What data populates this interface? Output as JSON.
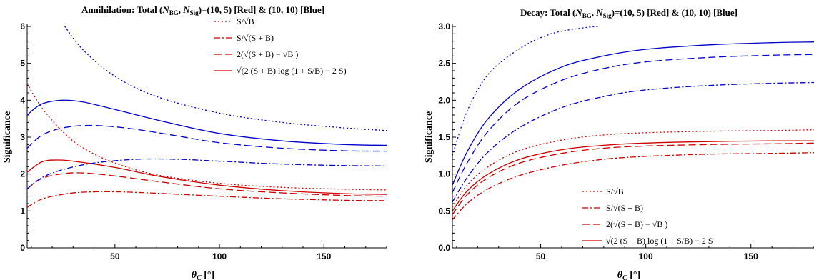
{
  "chart_data": [
    {
      "type": "line",
      "title_prefix": "Annihilation: Total (",
      "title_suffix": ")=(10, 5) [Red] & (10, 10) [Blue]",
      "xlabel": "θ",
      "xlabel_sub": "C",
      "xlabel_unit": " [°]",
      "ylabel": "Significance",
      "xlim": [
        8,
        180
      ],
      "ylim": [
        0,
        6
      ],
      "xticks": [
        50,
        100,
        150
      ],
      "yticks": [
        0,
        1,
        2,
        3,
        4,
        5,
        6
      ],
      "legend": "top-right",
      "legend_entries": [
        "S/√B",
        "S/√(S + B)",
        "2(√(S + B) − √B )",
        "√(2 (S + B) log (1 + S/B) − 2 S)"
      ],
      "series": [
        {
          "color": "#cc0000",
          "style": "dotted",
          "points": [
            [
              8,
              4.45
            ],
            [
              15,
              3.8
            ],
            [
              25,
              3.15
            ],
            [
              35,
              2.7
            ],
            [
              50,
              2.3
            ],
            [
              70,
              1.98
            ],
            [
              100,
              1.75
            ],
            [
              130,
              1.64
            ],
            [
              160,
              1.59
            ],
            [
              180,
              1.57
            ]
          ]
        },
        {
          "color": "#cc0000",
          "style": "dashdot",
          "points": [
            [
              8,
              1.1
            ],
            [
              15,
              1.32
            ],
            [
              25,
              1.45
            ],
            [
              35,
              1.51
            ],
            [
              50,
              1.52
            ],
            [
              70,
              1.48
            ],
            [
              100,
              1.4
            ],
            [
              130,
              1.33
            ],
            [
              160,
              1.29
            ],
            [
              180,
              1.28
            ]
          ]
        },
        {
          "color": "#cc0000",
          "style": "dashed",
          "points": [
            [
              8,
              1.6
            ],
            [
              15,
              1.88
            ],
            [
              25,
              2.01
            ],
            [
              35,
              2.03
            ],
            [
              50,
              1.95
            ],
            [
              70,
              1.8
            ],
            [
              100,
              1.6
            ],
            [
              130,
              1.49
            ],
            [
              160,
              1.42
            ],
            [
              180,
              1.4
            ]
          ]
        },
        {
          "color": "#cc0000",
          "style": "solid",
          "points": [
            [
              8,
              2.05
            ],
            [
              15,
              2.33
            ],
            [
              22,
              2.38
            ],
            [
              30,
              2.35
            ],
            [
              50,
              2.18
            ],
            [
              70,
              1.95
            ],
            [
              100,
              1.7
            ],
            [
              130,
              1.55
            ],
            [
              160,
              1.47
            ],
            [
              180,
              1.45
            ]
          ]
        },
        {
          "color": "#0000cc",
          "style": "dotted",
          "points": [
            [
              26,
              6.0
            ],
            [
              35,
              5.35
            ],
            [
              50,
              4.65
            ],
            [
              70,
              4.1
            ],
            [
              100,
              3.65
            ],
            [
              130,
              3.4
            ],
            [
              160,
              3.25
            ],
            [
              180,
              3.18
            ]
          ]
        },
        {
          "color": "#0000cc",
          "style": "dashdot",
          "points": [
            [
              8,
              1.6
            ],
            [
              15,
              1.9
            ],
            [
              25,
              2.12
            ],
            [
              40,
              2.3
            ],
            [
              60,
              2.4
            ],
            [
              80,
              2.4
            ],
            [
              100,
              2.35
            ],
            [
              130,
              2.27
            ],
            [
              160,
              2.23
            ],
            [
              180,
              2.22
            ]
          ]
        },
        {
          "color": "#0000cc",
          "style": "dashed",
          "points": [
            [
              8,
              2.7
            ],
            [
              15,
              3.05
            ],
            [
              25,
              3.25
            ],
            [
              38,
              3.32
            ],
            [
              55,
              3.25
            ],
            [
              75,
              3.08
            ],
            [
              100,
              2.85
            ],
            [
              130,
              2.7
            ],
            [
              160,
              2.63
            ],
            [
              180,
              2.62
            ]
          ]
        },
        {
          "color": "#0000cc",
          "style": "solid",
          "points": [
            [
              8,
              3.6
            ],
            [
              15,
              3.9
            ],
            [
              25,
              4.0
            ],
            [
              35,
              3.95
            ],
            [
              50,
              3.75
            ],
            [
              75,
              3.4
            ],
            [
              100,
              3.1
            ],
            [
              130,
              2.9
            ],
            [
              160,
              2.8
            ],
            [
              180,
              2.78
            ]
          ]
        }
      ]
    },
    {
      "type": "line",
      "title_prefix": "Decay: Total (",
      "title_suffix": ")=(10, 5) [Red] & (10, 10) [Blue]",
      "xlabel": "θ",
      "xlabel_sub": "C",
      "xlabel_unit": " [°]",
      "ylabel": "Significance",
      "xlim": [
        8,
        180
      ],
      "ylim": [
        0,
        3.0
      ],
      "xticks": [
        50,
        100,
        150
      ],
      "yticks": [
        0.0,
        0.5,
        1.0,
        1.5,
        2.0,
        2.5,
        3.0
      ],
      "legend": "bottom-right",
      "legend_entries": [
        "S/√B",
        "S/√(S + B)",
        "2(√(S + B) − √B )",
        "√(2 (S + B) log (1 + S/B) − 2 S"
      ],
      "series": [
        {
          "color": "#0000cc",
          "style": "dotted",
          "points": [
            [
              8,
              1.25
            ],
            [
              15,
              1.85
            ],
            [
              25,
              2.35
            ],
            [
              40,
              2.7
            ],
            [
              55,
              2.9
            ],
            [
              70,
              2.98
            ],
            [
              78,
              3.0
            ]
          ]
        },
        {
          "color": "#0000cc",
          "style": "solid",
          "points": [
            [
              8,
              0.85
            ],
            [
              15,
              1.3
            ],
            [
              25,
              1.75
            ],
            [
              40,
              2.15
            ],
            [
              60,
              2.45
            ],
            [
              80,
              2.6
            ],
            [
              100,
              2.69
            ],
            [
              130,
              2.75
            ],
            [
              160,
              2.78
            ],
            [
              180,
              2.79
            ]
          ]
        },
        {
          "color": "#0000cc",
          "style": "dashed",
          "points": [
            [
              8,
              0.75
            ],
            [
              15,
              1.15
            ],
            [
              25,
              1.58
            ],
            [
              40,
              1.98
            ],
            [
              60,
              2.27
            ],
            [
              80,
              2.43
            ],
            [
              100,
              2.52
            ],
            [
              130,
              2.58
            ],
            [
              160,
              2.61
            ],
            [
              180,
              2.62
            ]
          ]
        },
        {
          "color": "#0000cc",
          "style": "dashdot",
          "points": [
            [
              8,
              0.62
            ],
            [
              15,
              0.95
            ],
            [
              25,
              1.3
            ],
            [
              40,
              1.63
            ],
            [
              60,
              1.9
            ],
            [
              80,
              2.05
            ],
            [
              100,
              2.14
            ],
            [
              130,
              2.2
            ],
            [
              160,
              2.23
            ],
            [
              180,
              2.24
            ]
          ]
        },
        {
          "color": "#cc0000",
          "style": "dotted",
          "points": [
            [
              8,
              0.55
            ],
            [
              15,
              0.85
            ],
            [
              25,
              1.1
            ],
            [
              40,
              1.32
            ],
            [
              60,
              1.46
            ],
            [
              80,
              1.53
            ],
            [
              100,
              1.56
            ],
            [
              130,
              1.58
            ],
            [
              160,
              1.59
            ],
            [
              180,
              1.6
            ]
          ]
        },
        {
          "color": "#cc0000",
          "style": "solid",
          "points": [
            [
              8,
              0.5
            ],
            [
              15,
              0.77
            ],
            [
              25,
              1.0
            ],
            [
              40,
              1.2
            ],
            [
              60,
              1.33
            ],
            [
              80,
              1.39
            ],
            [
              100,
              1.42
            ],
            [
              130,
              1.44
            ],
            [
              160,
              1.45
            ],
            [
              180,
              1.45
            ]
          ]
        },
        {
          "color": "#cc0000",
          "style": "dashed",
          "points": [
            [
              8,
              0.45
            ],
            [
              15,
              0.72
            ],
            [
              25,
              0.95
            ],
            [
              40,
              1.15
            ],
            [
              60,
              1.28
            ],
            [
              80,
              1.35
            ],
            [
              100,
              1.38
            ],
            [
              130,
              1.4
            ],
            [
              160,
              1.41
            ],
            [
              180,
              1.42
            ]
          ]
        },
        {
          "color": "#cc0000",
          "style": "dashdot",
          "points": [
            [
              8,
              0.38
            ],
            [
              15,
              0.6
            ],
            [
              25,
              0.8
            ],
            [
              40,
              0.98
            ],
            [
              60,
              1.12
            ],
            [
              80,
              1.2
            ],
            [
              100,
              1.24
            ],
            [
              130,
              1.27
            ],
            [
              160,
              1.28
            ],
            [
              180,
              1.29
            ]
          ]
        }
      ]
    }
  ]
}
